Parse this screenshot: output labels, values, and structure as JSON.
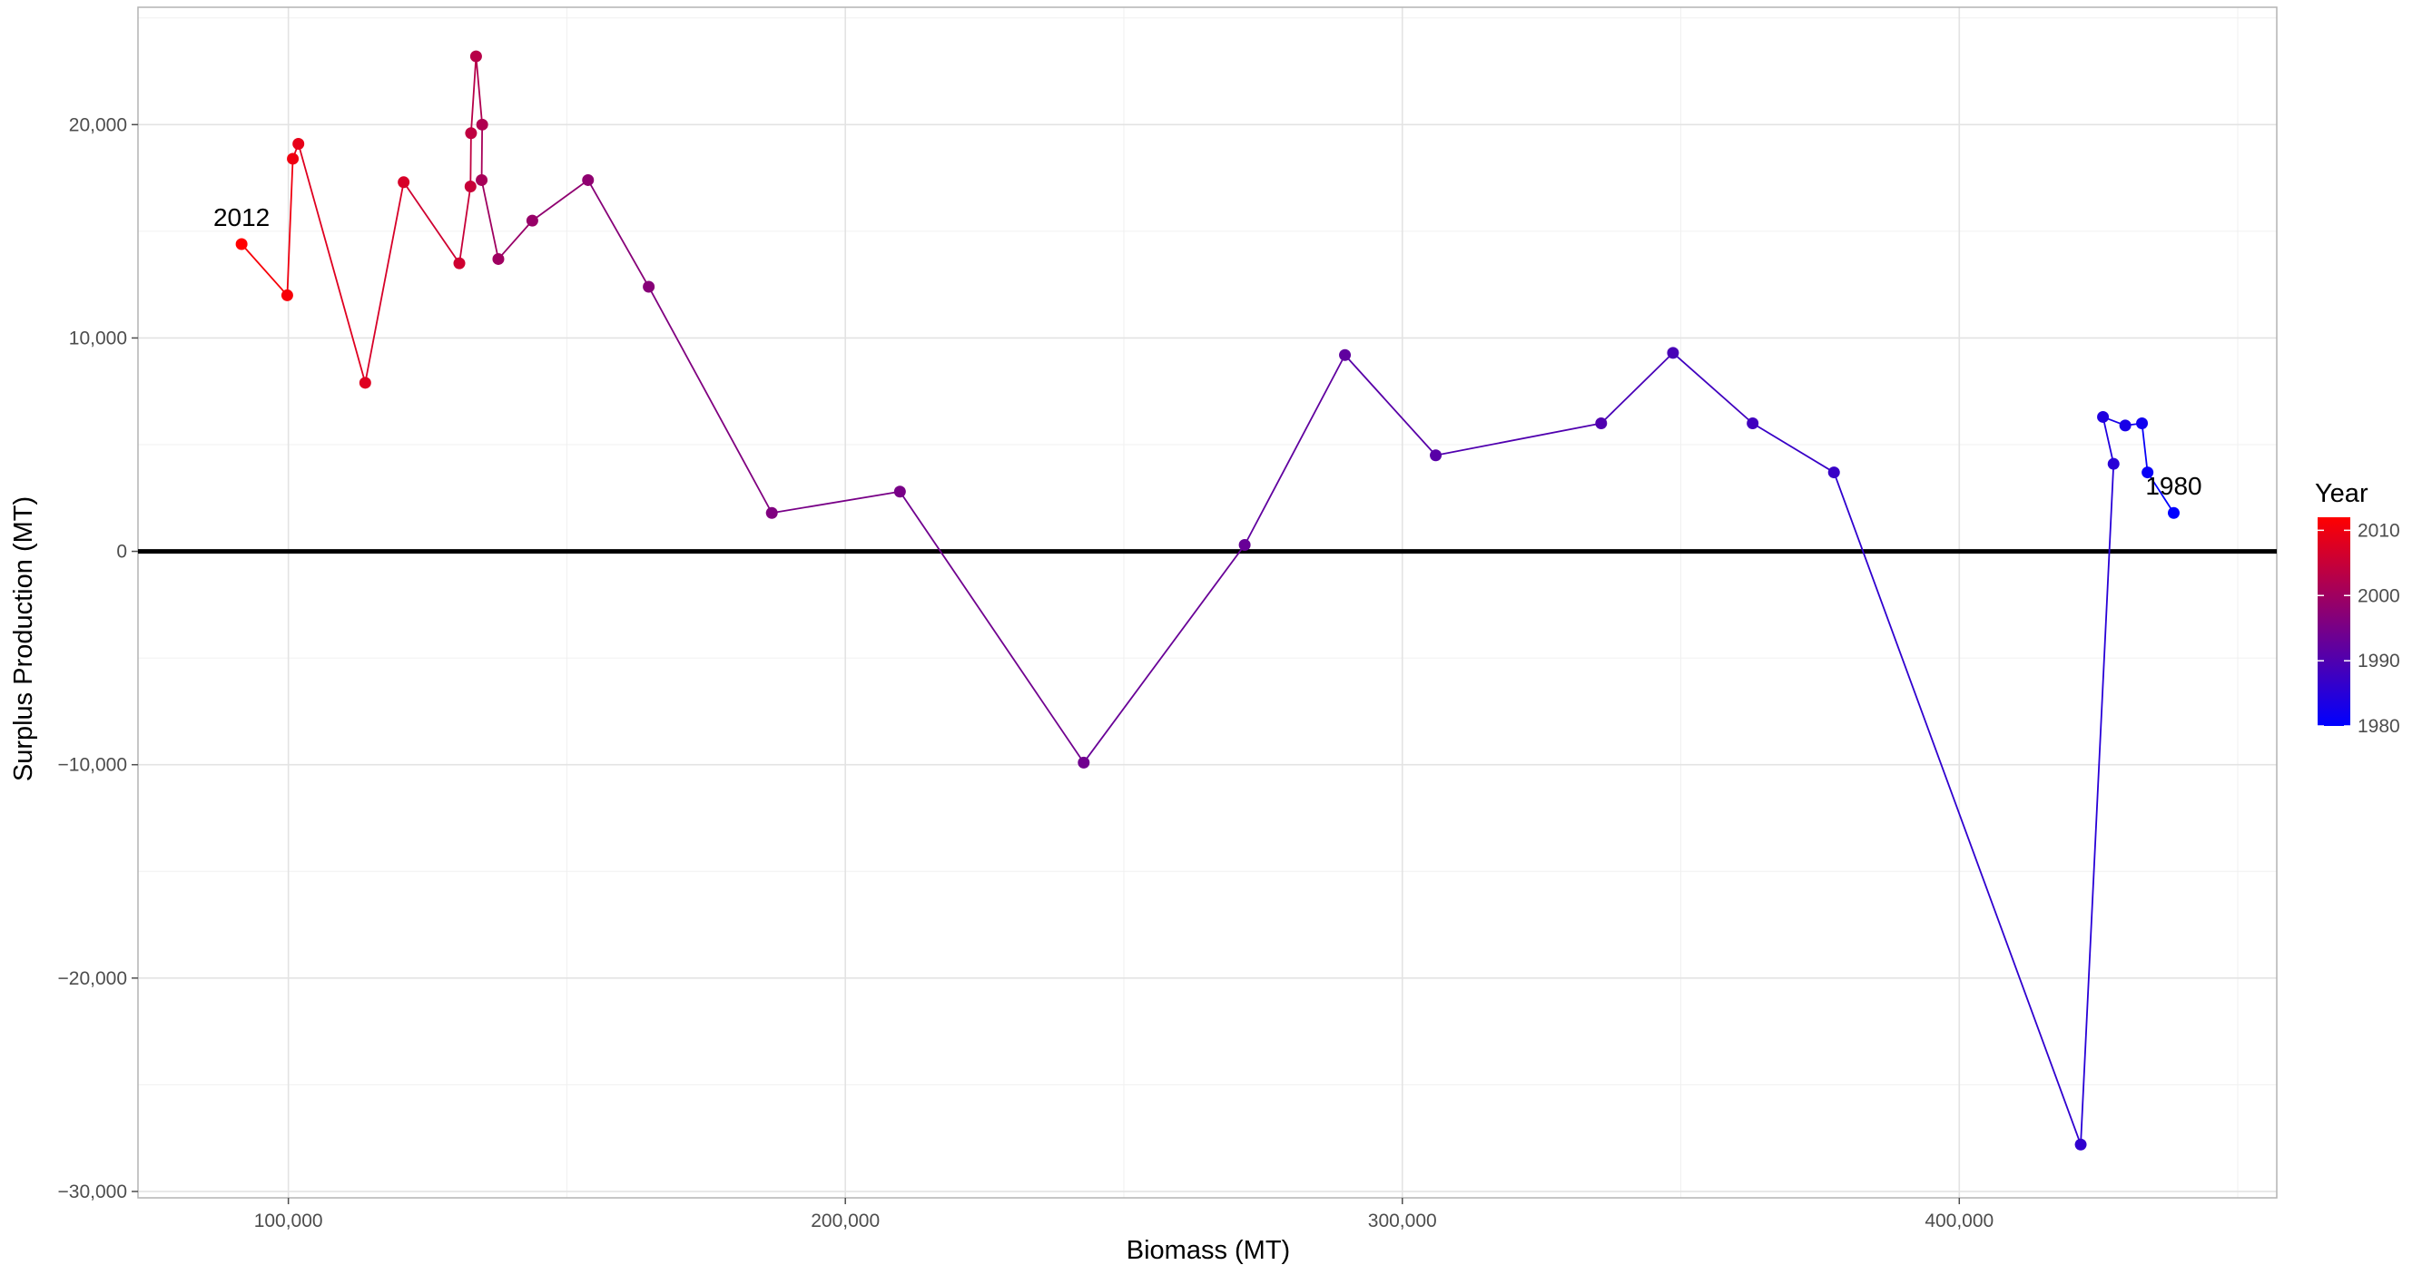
{
  "chart_data": {
    "type": "line",
    "title": "",
    "xlabel": "Biomass (MT)",
    "ylabel": "Surplus Production (MT)",
    "xlim": [
      73000,
      457000
    ],
    "ylim": [
      -30300,
      25500
    ],
    "x_ticks": [
      100000,
      200000,
      300000,
      400000
    ],
    "x_tick_labels": [
      "100,000",
      "200,000",
      "300,000",
      "400,000"
    ],
    "y_ticks": [
      -30000,
      -20000,
      -10000,
      0,
      10000,
      20000
    ],
    "y_tick_labels": [
      "−30,000",
      "−20,000",
      "−10,000",
      "0",
      "10,000",
      "20,000"
    ],
    "grid": true,
    "reference_line": {
      "y": 0,
      "color": "#000000"
    },
    "color_scale": {
      "title": "Year",
      "low": 1980,
      "high": 2012,
      "low_color": "#0000ff",
      "high_color": "#ff0000",
      "ticks": [
        1980,
        1990,
        2000,
        2010
      ],
      "tick_labels": [
        "1980",
        "1990",
        "2000",
        "2010"
      ],
      "position": "right"
    },
    "point_labels": [
      {
        "year": 2012,
        "text": "2012"
      },
      {
        "year": 1980,
        "text": "1980"
      }
    ],
    "points": [
      {
        "year": 1980,
        "x": 438500,
        "y": 1800
      },
      {
        "year": 1981,
        "x": 433800,
        "y": 3700
      },
      {
        "year": 1982,
        "x": 432800,
        "y": 6000
      },
      {
        "year": 1983,
        "x": 429800,
        "y": 5900
      },
      {
        "year": 1984,
        "x": 425800,
        "y": 6300
      },
      {
        "year": 1985,
        "x": 427700,
        "y": 4100
      },
      {
        "year": 1986,
        "x": 421800,
        "y": -27800
      },
      {
        "year": 1987,
        "x": 377500,
        "y": 3700
      },
      {
        "year": 1988,
        "x": 362900,
        "y": 6000
      },
      {
        "year": 1989,
        "x": 348600,
        "y": 9300
      },
      {
        "year": 1990,
        "x": 335700,
        "y": 6000
      },
      {
        "year": 1991,
        "x": 306000,
        "y": 4500
      },
      {
        "year": 1992,
        "x": 289700,
        "y": 9200
      },
      {
        "year": 1993,
        "x": 271700,
        "y": 300
      },
      {
        "year": 1994,
        "x": 242800,
        "y": -9900
      },
      {
        "year": 1995,
        "x": 209800,
        "y": 2800
      },
      {
        "year": 1996,
        "x": 186800,
        "y": 1800
      },
      {
        "year": 1997,
        "x": 164700,
        "y": 12400
      },
      {
        "year": 1998,
        "x": 153800,
        "y": 17400
      },
      {
        "year": 1999,
        "x": 143800,
        "y": 15500
      },
      {
        "year": 2000,
        "x": 137700,
        "y": 13700
      },
      {
        "year": 2001,
        "x": 134700,
        "y": 17400
      },
      {
        "year": 2002,
        "x": 134800,
        "y": 20000
      },
      {
        "year": 2003,
        "x": 133700,
        "y": 23200
      },
      {
        "year": 2004,
        "x": 132800,
        "y": 19600
      },
      {
        "year": 2005,
        "x": 132700,
        "y": 17100
      },
      {
        "year": 2006,
        "x": 130700,
        "y": 13500
      },
      {
        "year": 2007,
        "x": 120700,
        "y": 17300
      },
      {
        "year": 2008,
        "x": 113800,
        "y": 7900
      },
      {
        "year": 2009,
        "x": 101800,
        "y": 19100
      },
      {
        "year": 2010,
        "x": 100800,
        "y": 18400
      },
      {
        "year": 2011,
        "x": 99800,
        "y": 12000
      },
      {
        "year": 2012,
        "x": 91600,
        "y": 14400
      }
    ]
  }
}
